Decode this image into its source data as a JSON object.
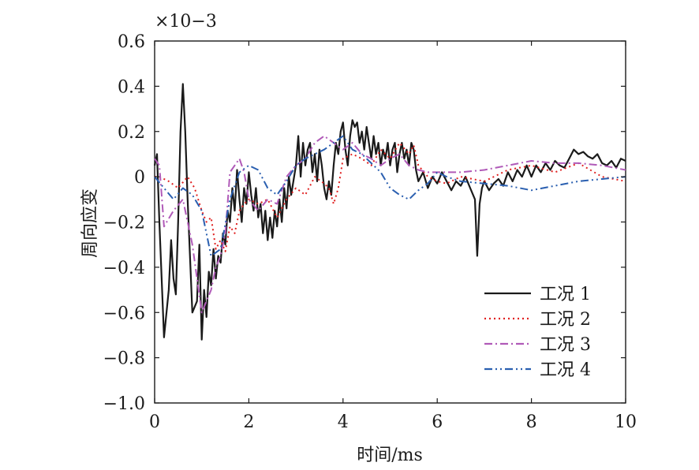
{
  "chart_data": {
    "type": "line",
    "xlabel": "时间/ms",
    "ylabel": "周向应变",
    "y_multiplier": "×10−3",
    "xlim": [
      0,
      10
    ],
    "ylim": [
      -1.0,
      0.6
    ],
    "xticks": [
      0,
      2,
      4,
      6,
      8,
      10
    ],
    "yticks": [
      -1.0,
      -0.8,
      -0.6,
      -0.4,
      -0.2,
      0,
      0.2,
      0.4,
      0.6
    ],
    "x_tick_labels": [
      "0",
      "2",
      "4",
      "6",
      "8",
      "10"
    ],
    "y_tick_labels": [
      "−1.0",
      "−0.8",
      "−0.6",
      "−0.4",
      "−0.2",
      "0",
      "0.2",
      "0.4",
      "0.6"
    ],
    "grid": false,
    "legend_position": "lower-right",
    "series": [
      {
        "name": "工况 1",
        "color": "#1a1a1a",
        "style": "solid",
        "x": [
          0,
          0.05,
          0.1,
          0.2,
          0.3,
          0.35,
          0.4,
          0.45,
          0.5,
          0.55,
          0.6,
          0.65,
          0.7,
          0.8,
          0.9,
          0.95,
          1.0,
          1.05,
          1.1,
          1.15,
          1.2,
          1.25,
          1.3,
          1.35,
          1.4,
          1.45,
          1.5,
          1.55,
          1.6,
          1.65,
          1.7,
          1.75,
          1.8,
          1.85,
          1.9,
          1.95,
          2.0,
          2.05,
          2.1,
          2.15,
          2.2,
          2.25,
          2.3,
          2.35,
          2.4,
          2.45,
          2.5,
          2.55,
          2.6,
          2.65,
          2.7,
          2.75,
          2.8,
          2.85,
          2.9,
          3.0,
          3.05,
          3.1,
          3.15,
          3.2,
          3.25,
          3.3,
          3.35,
          3.4,
          3.45,
          3.5,
          3.55,
          3.6,
          3.65,
          3.7,
          3.75,
          3.8,
          3.85,
          3.9,
          3.95,
          4.0,
          4.05,
          4.1,
          4.15,
          4.2,
          4.25,
          4.3,
          4.35,
          4.4,
          4.45,
          4.5,
          4.55,
          4.6,
          4.65,
          4.7,
          4.75,
          4.8,
          4.85,
          4.9,
          4.95,
          5.0,
          5.05,
          5.1,
          5.15,
          5.2,
          5.25,
          5.3,
          5.35,
          5.4,
          5.45,
          5.5,
          5.55,
          5.6,
          5.7,
          5.8,
          5.9,
          6.0,
          6.1,
          6.2,
          6.3,
          6.4,
          6.5,
          6.6,
          6.7,
          6.8,
          6.85,
          6.9,
          6.95,
          7.0,
          7.1,
          7.2,
          7.3,
          7.4,
          7.5,
          7.6,
          7.7,
          7.8,
          7.9,
          8.0,
          8.1,
          8.2,
          8.3,
          8.4,
          8.5,
          8.6,
          8.7,
          8.8,
          8.9,
          9.0,
          9.1,
          9.2,
          9.3,
          9.4,
          9.5,
          9.6,
          9.7,
          9.8,
          9.9,
          10.0
        ],
        "y": [
          0.05,
          0.1,
          -0.2,
          -0.71,
          -0.5,
          -0.28,
          -0.45,
          -0.52,
          -0.2,
          0.2,
          0.41,
          0.2,
          -0.1,
          -0.6,
          -0.55,
          -0.3,
          -0.72,
          -0.5,
          -0.62,
          -0.42,
          -0.48,
          -0.32,
          -0.45,
          -0.35,
          -0.38,
          -0.25,
          -0.3,
          -0.15,
          -0.2,
          -0.05,
          -0.15,
          0.03,
          -0.1,
          -0.2,
          -0.05,
          -0.12,
          0.02,
          -0.08,
          -0.15,
          -0.05,
          -0.18,
          -0.12,
          -0.25,
          -0.15,
          -0.28,
          -0.18,
          -0.27,
          -0.15,
          -0.22,
          -0.1,
          -0.2,
          -0.05,
          -0.14,
          0.0,
          -0.08,
          0.05,
          0.18,
          0.0,
          0.15,
          0.05,
          0.12,
          0.15,
          0.02,
          0.1,
          -0.02,
          0.12,
          0.05,
          -0.05,
          -0.1,
          -0.02,
          -0.08,
          0.05,
          0.15,
          0.1,
          0.2,
          0.24,
          0.12,
          0.05,
          0.18,
          0.25,
          0.22,
          0.24,
          0.15,
          0.2,
          0.12,
          0.22,
          0.15,
          0.08,
          0.18,
          0.1,
          0.15,
          0.05,
          0.12,
          0.08,
          0.15,
          0.05,
          0.12,
          0.15,
          0.02,
          0.1,
          0.15,
          0.08,
          0.12,
          0.05,
          0.15,
          0.12,
          0.03,
          -0.02,
          0.02,
          -0.05,
          0.0,
          -0.03,
          0.02,
          -0.02,
          -0.06,
          -0.02,
          -0.04,
          0.0,
          -0.05,
          -0.1,
          -0.35,
          -0.12,
          -0.05,
          -0.02,
          -0.06,
          -0.03,
          -0.01,
          -0.04,
          0.02,
          -0.02,
          0.03,
          0.0,
          0.05,
          0.0,
          0.05,
          0.02,
          0.06,
          0.03,
          0.07,
          0.05,
          0.04,
          0.08,
          0.12,
          0.1,
          0.11,
          0.09,
          0.08,
          0.1,
          0.06,
          0.05,
          0.07,
          0.04,
          0.08,
          0.07
        ]
      },
      {
        "name": "工况 2",
        "color": "#e02020",
        "style": "dotted",
        "x": [
          0,
          0.1,
          0.3,
          0.5,
          0.7,
          0.85,
          1.0,
          1.1,
          1.2,
          1.3,
          1.4,
          1.5,
          1.6,
          1.7,
          1.8,
          1.9,
          2.0,
          2.2,
          2.4,
          2.6,
          2.8,
          3.0,
          3.2,
          3.4,
          3.6,
          3.7,
          3.8,
          3.9,
          4.0,
          4.2,
          4.4,
          4.6,
          4.8,
          5.0,
          5.2,
          5.4,
          5.5,
          5.6,
          5.8,
          6.0,
          6.2,
          6.5,
          7.0,
          7.5,
          8.0,
          8.5,
          9.0,
          9.5,
          10.0
        ],
        "y": [
          0.0,
          0.0,
          -0.02,
          -0.05,
          0.0,
          -0.05,
          -0.15,
          -0.2,
          -0.18,
          -0.32,
          -0.28,
          -0.33,
          -0.22,
          -0.25,
          -0.15,
          -0.12,
          -0.1,
          -0.12,
          -0.1,
          -0.18,
          -0.1,
          -0.05,
          -0.08,
          0.0,
          -0.03,
          -0.05,
          -0.12,
          -0.05,
          0.08,
          0.1,
          0.08,
          0.05,
          0.12,
          0.08,
          0.15,
          0.1,
          0.14,
          0.05,
          0.0,
          -0.02,
          -0.03,
          0.0,
          -0.02,
          0.03,
          0.05,
          0.02,
          0.06,
          0.0,
          -0.02
        ]
      },
      {
        "name": "工况 3",
        "color": "#b05ab8",
        "style": "dashdot",
        "x": [
          0,
          0.1,
          0.2,
          0.4,
          0.6,
          0.8,
          1.0,
          1.1,
          1.2,
          1.3,
          1.4,
          1.5,
          1.6,
          1.7,
          1.8,
          1.9,
          2.0,
          2.2,
          2.4,
          2.6,
          2.8,
          3.0,
          3.2,
          3.4,
          3.6,
          3.8,
          4.0,
          4.2,
          4.4,
          4.6,
          4.8,
          5.0,
          5.2,
          5.4,
          5.6,
          5.8,
          6.0,
          6.5,
          7.0,
          7.5,
          8.0,
          8.5,
          9.0,
          9.5,
          10.0
        ],
        "y": [
          0.08,
          0.05,
          -0.22,
          -0.15,
          -0.1,
          -0.3,
          -0.6,
          -0.55,
          -0.5,
          -0.4,
          -0.35,
          -0.25,
          0.02,
          0.05,
          0.08,
          0.02,
          -0.1,
          -0.15,
          -0.1,
          -0.12,
          0.0,
          0.05,
          0.08,
          0.15,
          0.18,
          0.15,
          0.12,
          0.15,
          0.1,
          0.08,
          0.05,
          0.08,
          0.1,
          0.05,
          0.03,
          0.02,
          0.02,
          0.02,
          0.03,
          0.05,
          0.07,
          0.06,
          0.06,
          0.05,
          0.03
        ]
      },
      {
        "name": "工况 4",
        "color": "#2a5fb0",
        "style": "dashdotdot",
        "x": [
          0,
          0.2,
          0.4,
          0.6,
          0.8,
          1.0,
          1.2,
          1.4,
          1.6,
          1.8,
          2.0,
          2.2,
          2.4,
          2.6,
          2.8,
          3.0,
          3.2,
          3.4,
          3.6,
          3.8,
          4.0,
          4.2,
          4.4,
          4.6,
          4.8,
          5.0,
          5.2,
          5.4,
          5.6,
          5.8,
          6.0,
          6.2,
          6.5,
          7.0,
          7.5,
          8.0,
          8.5,
          9.0,
          9.5,
          10.0
        ],
        "y": [
          0.0,
          -0.05,
          -0.1,
          -0.05,
          -0.08,
          -0.15,
          -0.35,
          -0.32,
          -0.1,
          0.02,
          0.05,
          0.03,
          -0.05,
          -0.08,
          -0.02,
          0.05,
          0.08,
          0.1,
          0.12,
          0.15,
          0.18,
          0.12,
          0.1,
          0.06,
          0.02,
          -0.05,
          -0.08,
          -0.1,
          -0.06,
          -0.03,
          0.02,
          0.0,
          -0.02,
          -0.03,
          -0.04,
          -0.06,
          -0.04,
          -0.02,
          -0.01,
          0.0
        ]
      }
    ]
  }
}
